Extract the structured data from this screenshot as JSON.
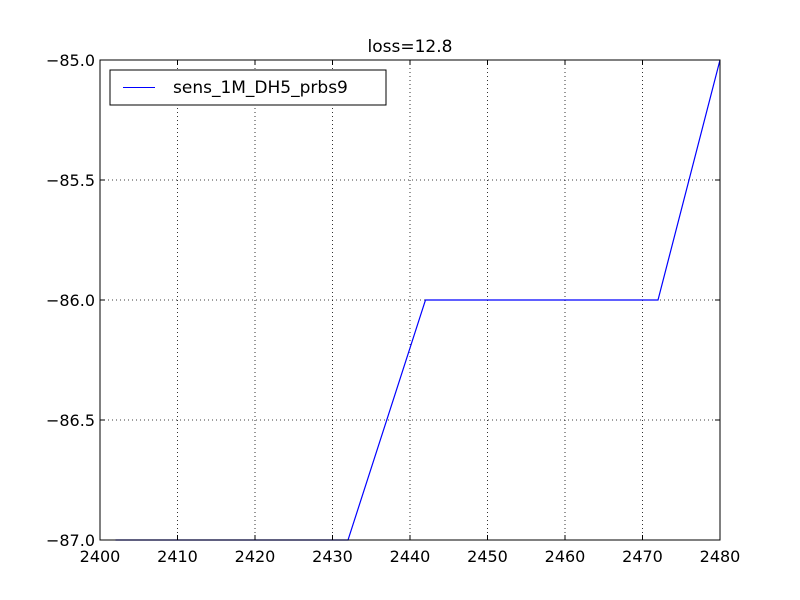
{
  "chart_data": {
    "type": "line",
    "title": "loss=12.8",
    "xlabel": "",
    "ylabel": "",
    "xlim": [
      2400,
      2480
    ],
    "ylim": [
      -87.0,
      -85.0
    ],
    "xticks": [
      2400,
      2410,
      2420,
      2430,
      2440,
      2450,
      2460,
      2470,
      2480
    ],
    "xtick_labels": [
      "2400",
      "2410",
      "2420",
      "2430",
      "2440",
      "2450",
      "2460",
      "2470",
      "2480"
    ],
    "yticks": [
      -85.0,
      -85.5,
      -86.0,
      -86.5,
      -87.0
    ],
    "ytick_labels": [
      "−85.0",
      "−85.5",
      "−86.0",
      "−86.5",
      "−87.0"
    ],
    "grid": true,
    "legend_position": "top-left",
    "series": [
      {
        "name": "sens_1M_DH5_prbs9",
        "color": "#0000ff",
        "x": [
          2402,
          2432,
          2442,
          2472,
          2480
        ],
        "y": [
          -87.0,
          -87.0,
          -86.0,
          -86.0,
          -85.0
        ]
      }
    ]
  }
}
